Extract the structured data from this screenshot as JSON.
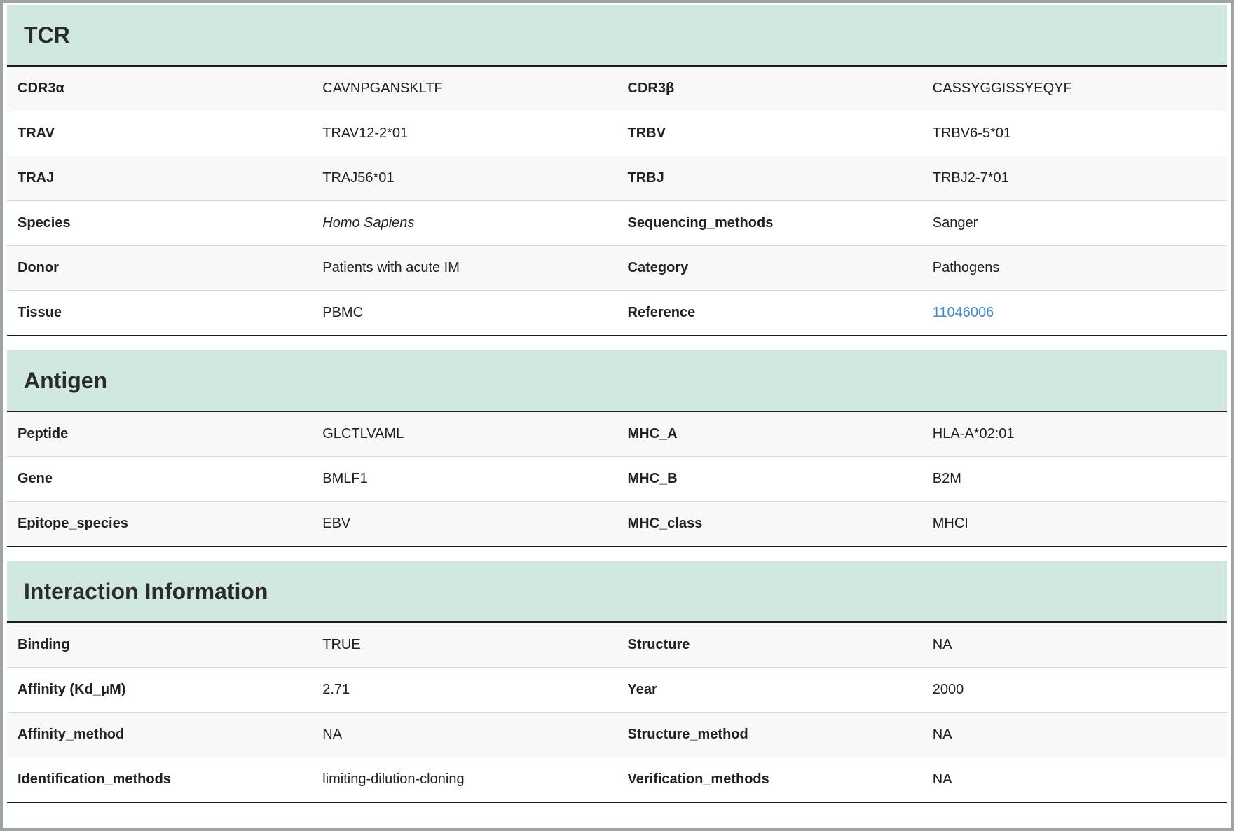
{
  "colors": {
    "section_header_bg": "#d0e8dd",
    "dark_table_border": "#1c1c1c",
    "row_stripe": "#f8f8f8",
    "row_divider": "#dadada",
    "text": "#212121",
    "link": "#418cd2",
    "page_border": "#9da4a7"
  },
  "sections": [
    {
      "title": "TCR",
      "rows": [
        {
          "l1": "CDR3α",
          "v1": "CAVNPGANSKLTF",
          "l2": "CDR3β",
          "v2": "CASSYGGISSYEQYF"
        },
        {
          "l1": "TRAV",
          "v1": "TRAV12-2*01",
          "l2": "TRBV",
          "v2": "TRBV6-5*01"
        },
        {
          "l1": "TRAJ",
          "v1": "TRAJ56*01",
          "l2": "TRBJ",
          "v2": "TRBJ2-7*01"
        },
        {
          "l1": "Species",
          "v1": "Homo Sapiens",
          "l2": "Sequencing_methods",
          "v2": "Sanger"
        },
        {
          "l1": "Donor",
          "v1": "Patients with acute IM",
          "l2": "Category",
          "v2": "Pathogens"
        },
        {
          "l1": "Tissue",
          "v1": "PBMC",
          "l2": "Reference",
          "v2": "11046006"
        }
      ]
    },
    {
      "title": "Antigen",
      "rows": [
        {
          "l1": "Peptide",
          "v1": "GLCTLVAML",
          "l2": "MHC_A",
          "v2": "HLA-A*02:01"
        },
        {
          "l1": "Gene",
          "v1": "BMLF1",
          "l2": "MHC_B",
          "v2": "B2M"
        },
        {
          "l1": "Epitope_species",
          "v1": "EBV",
          "l2": "MHC_class",
          "v2": "MHCI"
        }
      ]
    },
    {
      "title": "Interaction Information",
      "rows": [
        {
          "l1": "Binding",
          "v1": "TRUE",
          "l2": "Structure",
          "v2": "NA"
        },
        {
          "l1": "Affinity (Kd_μM)",
          "v1": "2.71",
          "l2": "Year",
          "v2": "2000"
        },
        {
          "l1": "Affinity_method",
          "v1": "NA",
          "l2": "Structure_method",
          "v2": "NA"
        },
        {
          "l1": "Identification_methods",
          "v1": "limiting-dilution-cloning",
          "l2": "Verification_methods",
          "v2": "NA"
        }
      ]
    }
  ]
}
